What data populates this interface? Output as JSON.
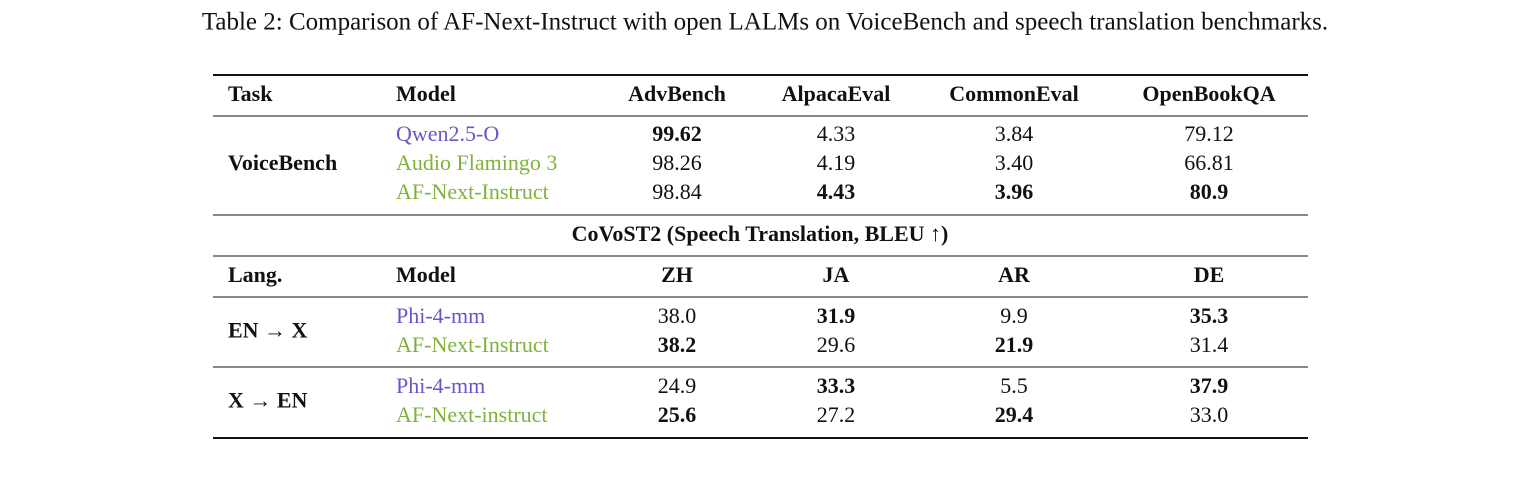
{
  "caption": "Table 2: Comparison of AF-Next-Instruct with open LALMs on VoiceBench and speech translation benchmarks.",
  "table": {
    "header": [
      "Task",
      "Model",
      "AdvBench",
      "AlpacaEval",
      "CommonEval",
      "OpenBookQA"
    ],
    "groups": [
      {
        "label": "VoiceBench",
        "rows": [
          {
            "model": "Qwen2.5-O",
            "color": "#6f54c9",
            "cells": [
              {
                "text": "99.62",
                "bold": true
              },
              {
                "text": "4.33",
                "bold": false
              },
              {
                "text": "3.84",
                "bold": false
              },
              {
                "text": "79.12",
                "bold": false
              }
            ]
          },
          {
            "model": "Audio Flamingo 3",
            "color": "#7fb23c",
            "cells": [
              {
                "text": "98.26",
                "bold": false
              },
              {
                "text": "4.19",
                "bold": false
              },
              {
                "text": "3.40",
                "bold": false
              },
              {
                "text": "66.81",
                "bold": false
              }
            ]
          },
          {
            "model": "AF-Next-Instruct",
            "color": "#7fb23c",
            "cells": [
              {
                "text": "98.84",
                "bold": false
              },
              {
                "text": "4.43",
                "bold": true
              },
              {
                "text": "3.96",
                "bold": true
              },
              {
                "text": "80.9",
                "bold": true
              }
            ]
          }
        ]
      }
    ],
    "section": "CoVoST2 (Speech Translation, BLEU ↑)",
    "header2": [
      "Lang.",
      "Model",
      "ZH",
      "JA",
      "AR",
      "DE"
    ],
    "groups2": [
      {
        "label": "EN → X",
        "rows": [
          {
            "model": "Phi-4-mm",
            "color": "#6f54c9",
            "cells": [
              {
                "text": "38.0",
                "bold": false
              },
              {
                "text": "31.9",
                "bold": true
              },
              {
                "text": "9.9",
                "bold": false
              },
              {
                "text": "35.3",
                "bold": true
              }
            ]
          },
          {
            "model": "AF-Next-Instruct",
            "color": "#7fb23c",
            "cells": [
              {
                "text": "38.2",
                "bold": true
              },
              {
                "text": "29.6",
                "bold": false
              },
              {
                "text": "21.9",
                "bold": true
              },
              {
                "text": "31.4",
                "bold": false
              }
            ]
          }
        ]
      },
      {
        "label": "X → EN",
        "rows": [
          {
            "model": "Phi-4-mm",
            "color": "#6f54c9",
            "cells": [
              {
                "text": "24.9",
                "bold": false
              },
              {
                "text": "33.3",
                "bold": true
              },
              {
                "text": "5.5",
                "bold": false
              },
              {
                "text": "37.9",
                "bold": true
              }
            ]
          },
          {
            "model": "AF-Next-instruct",
            "color": "#7fb23c",
            "cells": [
              {
                "text": "25.6",
                "bold": true
              },
              {
                "text": "27.2",
                "bold": false
              },
              {
                "text": "29.4",
                "bold": true
              },
              {
                "text": "33.0",
                "bold": false
              }
            ]
          }
        ]
      }
    ]
  }
}
